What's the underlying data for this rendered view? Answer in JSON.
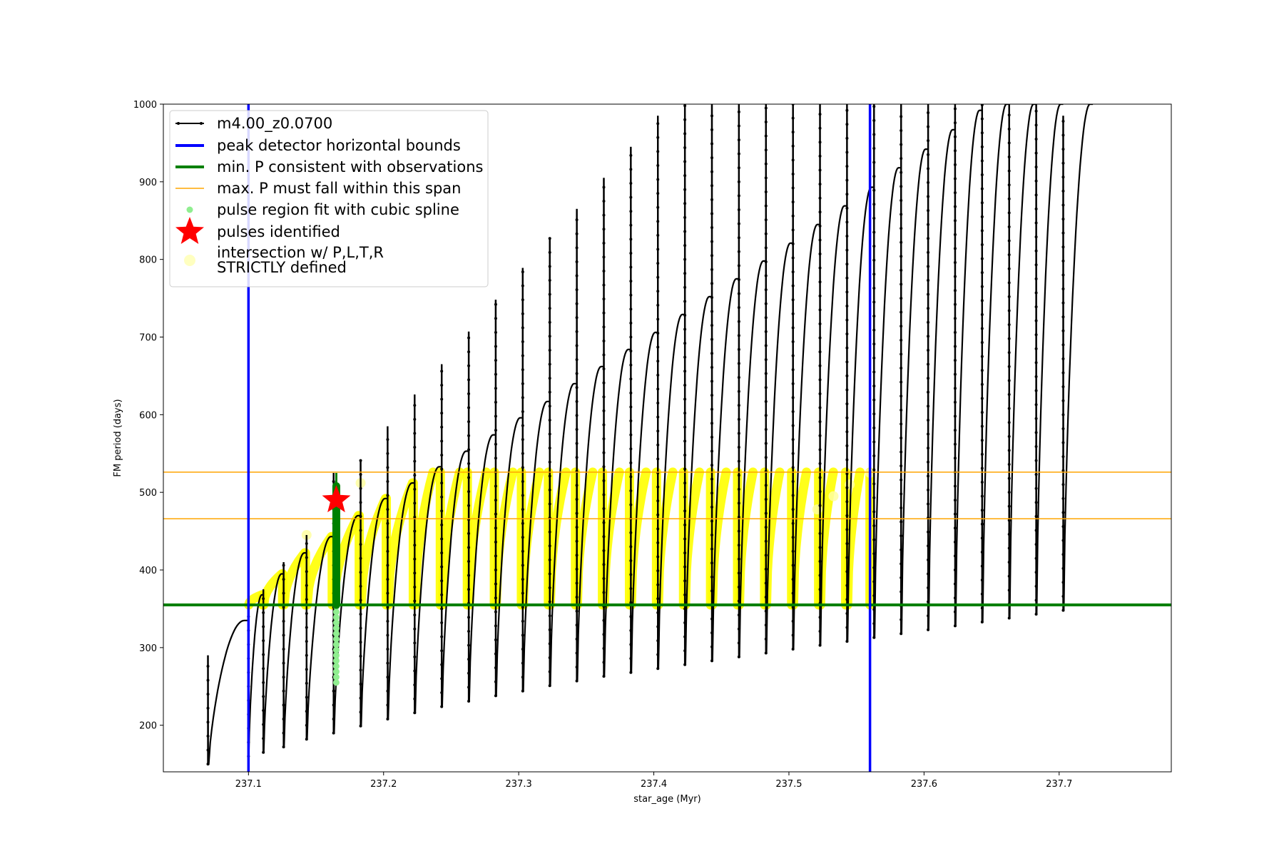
{
  "chart_data": {
    "type": "line",
    "xlabel": "star_age (Myr)",
    "ylabel": "FM period (days)",
    "xlim": [
      237.037,
      237.783
    ],
    "ylim": [
      140,
      1000
    ],
    "xticks": [
      "237.1",
      "237.2",
      "237.3",
      "237.4",
      "237.5",
      "237.6",
      "237.7"
    ],
    "yticks": [
      "200",
      "300",
      "400",
      "500",
      "600",
      "700",
      "800",
      "900",
      "1000"
    ],
    "grid": false,
    "legend_position": "top-left",
    "legend": [
      {
        "label": "m4.00_z0.0700",
        "style": "line-marker",
        "color": "#000000"
      },
      {
        "label": "peak detector horizontal bounds",
        "style": "line",
        "color": "#0000ff"
      },
      {
        "label": "min. P consistent with observations",
        "style": "line",
        "color": "#008000"
      },
      {
        "label": "max. P must fall within this span",
        "style": "line-thin",
        "color": "#ffa500"
      },
      {
        "label": "pulse region fit with cubic spline",
        "style": "dot",
        "color": "#90ee90"
      },
      {
        "label": "pulses identified",
        "style": "star",
        "color": "#ff0000"
      },
      {
        "label": "intersection w/ P,L,T,R",
        "label2": "STRICTLY defined",
        "style": "dot-big",
        "color": "#ffffc0"
      }
    ],
    "vertical_bounds": {
      "x": [
        237.1,
        237.56
      ],
      "color": "#0000ff"
    },
    "min_period": {
      "y": 355,
      "color": "#008000"
    },
    "max_period_span": {
      "y": [
        466,
        526
      ],
      "color": "#ffa500"
    },
    "pulse_identified": {
      "x": 237.165,
      "y": 490,
      "color": "#ff0000"
    },
    "series": [
      {
        "name": "m4.00_z0.0700",
        "color": "#000000",
        "cycles": [
          {
            "start": 237.07,
            "end": 237.1,
            "pmin": 150,
            "pmax": 335,
            "spike": 290
          },
          {
            "start": 237.1,
            "end": 237.111,
            "pmin": 160,
            "pmax": 368,
            "spike": 340
          },
          {
            "start": 237.111,
            "end": 237.126,
            "pmin": 165,
            "pmax": 395,
            "spike": 375
          },
          {
            "start": 237.126,
            "end": 237.143,
            "pmin": 172,
            "pmax": 422,
            "spike": 410
          },
          {
            "start": 237.143,
            "end": 237.163,
            "pmin": 182,
            "pmax": 443,
            "spike": 445
          },
          {
            "start": 237.163,
            "end": 237.183,
            "pmin": 190,
            "pmax": 470,
            "spike": 525
          },
          {
            "start": 237.183,
            "end": 237.203,
            "pmin": 199,
            "pmax": 492,
            "spike": 542
          },
          {
            "start": 237.203,
            "end": 237.223,
            "pmin": 208,
            "pmax": 512,
            "spike": 585
          },
          {
            "start": 237.223,
            "end": 237.243,
            "pmin": 216,
            "pmax": 533,
            "spike": 626
          },
          {
            "start": 237.243,
            "end": 237.263,
            "pmin": 224,
            "pmax": 553,
            "spike": 665
          },
          {
            "start": 237.263,
            "end": 237.283,
            "pmin": 231,
            "pmax": 574,
            "spike": 707
          },
          {
            "start": 237.283,
            "end": 237.303,
            "pmin": 238,
            "pmax": 596,
            "spike": 748
          },
          {
            "start": 237.303,
            "end": 237.323,
            "pmin": 244,
            "pmax": 617,
            "spike": 789
          },
          {
            "start": 237.323,
            "end": 237.343,
            "pmin": 251,
            "pmax": 640,
            "spike": 827
          },
          {
            "start": 237.343,
            "end": 237.363,
            "pmin": 257,
            "pmax": 662,
            "spike": 865
          },
          {
            "start": 237.363,
            "end": 237.383,
            "pmin": 263,
            "pmax": 684,
            "spike": 905
          },
          {
            "start": 237.383,
            "end": 237.403,
            "pmin": 268,
            "pmax": 706,
            "spike": 945
          },
          {
            "start": 237.403,
            "end": 237.423,
            "pmin": 273,
            "pmax": 729,
            "spike": 985
          },
          {
            "start": 237.423,
            "end": 237.443,
            "pmin": 278,
            "pmax": 752,
            "spike": 1000
          },
          {
            "start": 237.443,
            "end": 237.463,
            "pmin": 283,
            "pmax": 775,
            "spike": 1000
          },
          {
            "start": 237.463,
            "end": 237.483,
            "pmin": 288,
            "pmax": 798,
            "spike": 1000
          },
          {
            "start": 237.483,
            "end": 237.503,
            "pmin": 293,
            "pmax": 821,
            "spike": 1000
          },
          {
            "start": 237.503,
            "end": 237.523,
            "pmin": 298,
            "pmax": 845,
            "spike": 1000
          },
          {
            "start": 237.523,
            "end": 237.543,
            "pmin": 303,
            "pmax": 869,
            "spike": 1000
          },
          {
            "start": 237.543,
            "end": 237.563,
            "pmin": 308,
            "pmax": 893,
            "spike": 1000
          },
          {
            "start": 237.563,
            "end": 237.583,
            "pmin": 313,
            "pmax": 918,
            "spike": 1000
          },
          {
            "start": 237.583,
            "end": 237.603,
            "pmin": 318,
            "pmax": 942,
            "spike": 1000
          },
          {
            "start": 237.603,
            "end": 237.623,
            "pmin": 323,
            "pmax": 967,
            "spike": 1000
          },
          {
            "start": 237.623,
            "end": 237.643,
            "pmin": 328,
            "pmax": 992,
            "spike": 1000
          },
          {
            "start": 237.643,
            "end": 237.663,
            "pmin": 333,
            "pmax": 1000,
            "spike": 1000
          },
          {
            "start": 237.663,
            "end": 237.683,
            "pmin": 338,
            "pmax": 1000,
            "spike": 1000
          },
          {
            "start": 237.683,
            "end": 237.703,
            "pmin": 343,
            "pmax": 1000,
            "spike": 1000
          },
          {
            "start": 237.703,
            "end": 237.725,
            "pmin": 348,
            "pmax": 1000,
            "spike": 985
          }
        ]
      }
    ]
  }
}
